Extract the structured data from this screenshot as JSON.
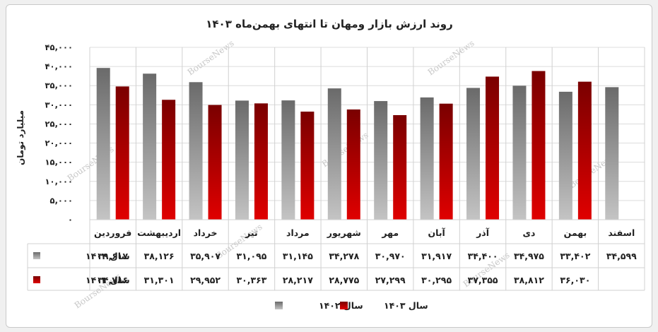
{
  "watermark": "BourseNews",
  "colors": {
    "s1402": "#7a7a7a",
    "s1403": "#c00000"
  },
  "chart_data": {
    "type": "bar",
    "title": "روند ارزش بازار ومهان تا انتهای بهمن‌ماه ۱۴۰۳",
    "ylabel": "میلیارد تومان",
    "ylim": [
      0,
      45000
    ],
    "yticks": [
      0,
      5000,
      10000,
      15000,
      20000,
      25000,
      30000,
      35000,
      40000,
      45000
    ],
    "ytick_labels": [
      "۰",
      "۵,۰۰۰",
      "۱۰,۰۰۰",
      "۱۵,۰۰۰",
      "۲۰,۰۰۰",
      "۲۵,۰۰۰",
      "۳۰,۰۰۰",
      "۳۵,۰۰۰",
      "۴۰,۰۰۰",
      "۴۵,۰۰۰"
    ],
    "categories": [
      "فروردین",
      "اردیبهشت",
      "خرداد",
      "تیر",
      "مرداد",
      "شهریور",
      "مهر",
      "آبان",
      "آذر",
      "دی",
      "بهمن",
      "اسفند"
    ],
    "grid": true,
    "legend_position": "bottom",
    "series": [
      {
        "name": "سال ۱۴۰۲",
        "values": [
          39617,
          38126,
          35907,
          31095,
          31145,
          34278,
          30970,
          31917,
          34400,
          34975,
          33402,
          34599
        ],
        "labels": [
          "۳۹,۶۱۷",
          "۳۸,۱۲۶",
          "۳۵,۹۰۷",
          "۳۱,۰۹۵",
          "۳۱,۱۴۵",
          "۳۴,۲۷۸",
          "۳۰,۹۷۰",
          "۳۱,۹۱۷",
          "۳۴,۴۰۰",
          "۳۴,۹۷۵",
          "۳۳,۴۰۲",
          "۳۴,۵۹۹"
        ]
      },
      {
        "name": "سال ۱۴۰۳",
        "values": [
          34786,
          31301,
          29952,
          30363,
          28217,
          28775,
          27299,
          30295,
          37355,
          38812,
          36030,
          null
        ],
        "labels": [
          "۳۴,۷۸۶",
          "۳۱,۳۰۱",
          "۲۹,۹۵۲",
          "۳۰,۳۶۳",
          "۲۸,۲۱۷",
          "۲۸,۷۷۵",
          "۲۷,۲۹۹",
          "۳۰,۲۹۵",
          "۳۷,۳۵۵",
          "۳۸,۸۱۲",
          "۳۶,۰۳۰",
          ""
        ]
      }
    ]
  }
}
